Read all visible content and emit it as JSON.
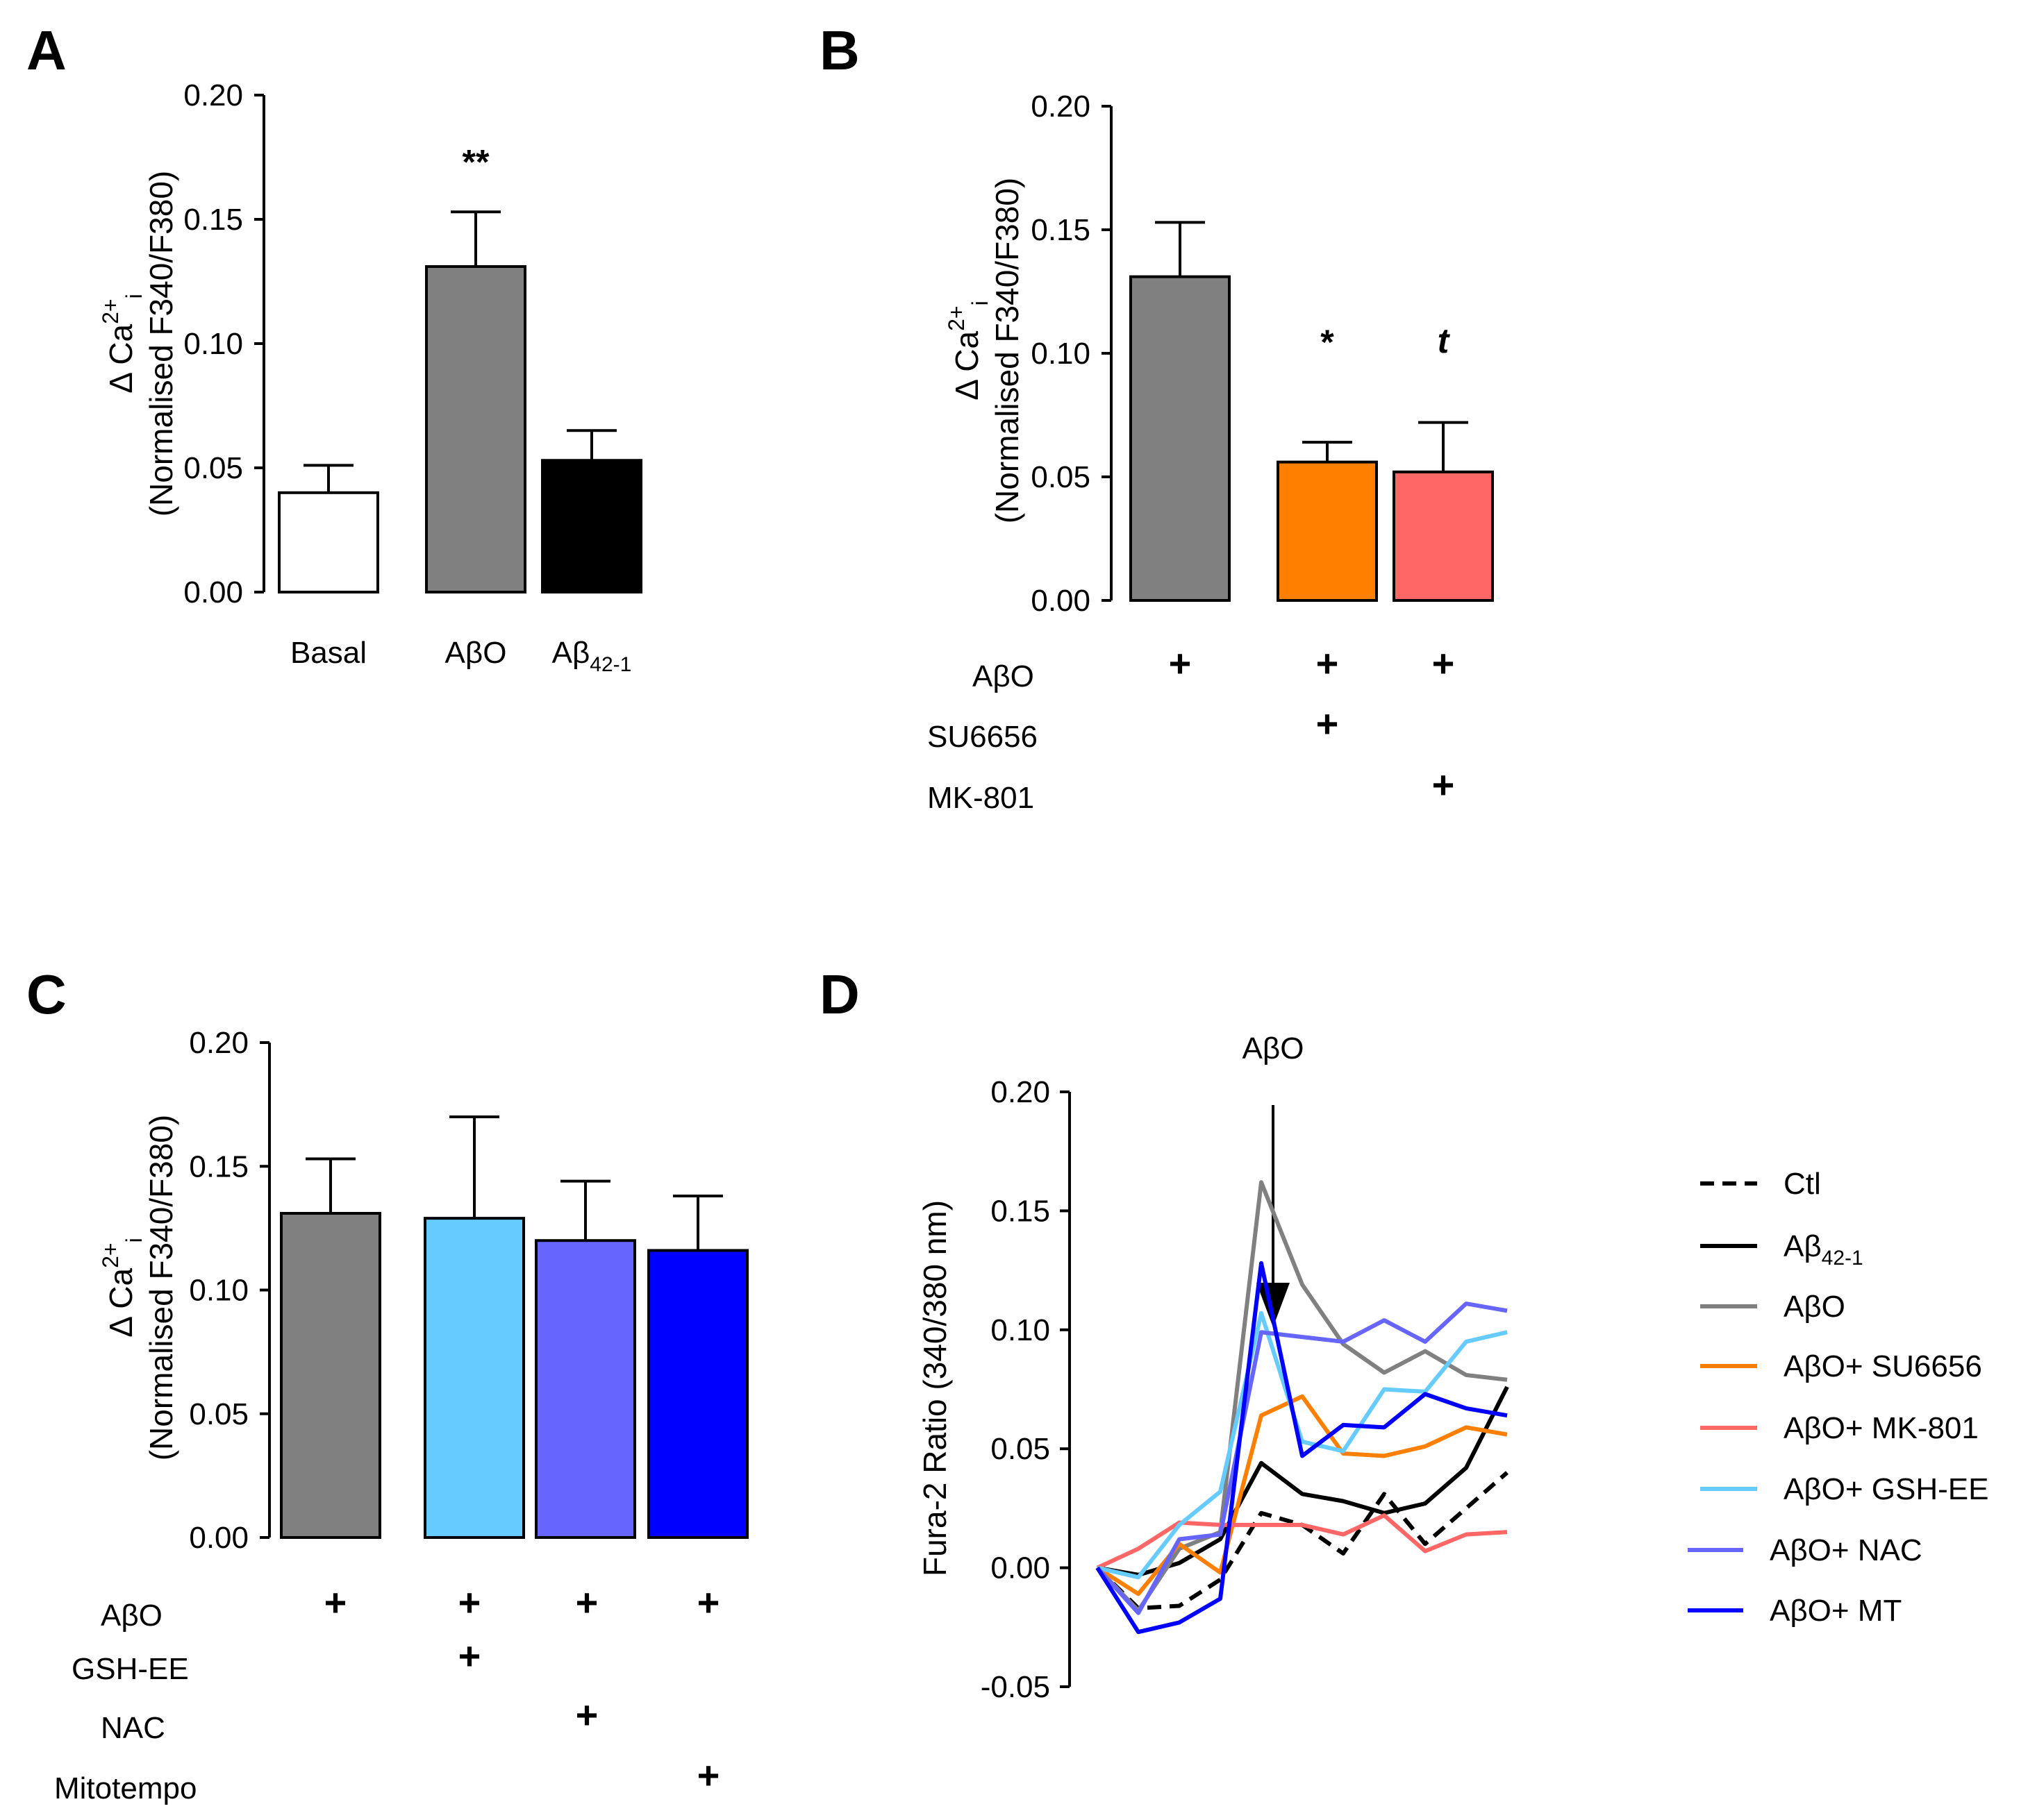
{
  "colors": {
    "basal": "#ffffff",
    "abo": "#808080",
    "ab421": "#000000",
    "su6656": "#ff8000",
    "mk801": "#ff6666",
    "gshee": "#66ccff",
    "nac": "#6666ff",
    "mt": "#0000ff",
    "ctl": "#000000"
  },
  "chart_data": [
    {
      "panel": "A",
      "type": "bar",
      "ylabel_line1": "Δ Ca",
      "ylabel_sup": "2+",
      "ylabel_sub": "i",
      "ylabel_line2": "(Normalised F340/F380)",
      "ylim": [
        0,
        0.2
      ],
      "yticks": [
        "0.00",
        "0.05",
        "0.10",
        "0.15",
        "0.20"
      ],
      "categories": [
        {
          "label": "Basal",
          "sub": ""
        },
        {
          "label": "Aβ",
          "sub": "",
          "tail": "O"
        },
        {
          "label": "Aβ",
          "sub": "42-1",
          "tail": ""
        }
      ],
      "values": [
        0.04,
        0.131,
        0.053
      ],
      "errors": [
        0.011,
        0.022,
        0.012
      ],
      "annotations": [
        "",
        "**",
        ""
      ]
    },
    {
      "panel": "B",
      "type": "bar",
      "ylabel_line1": "Δ Ca",
      "ylabel_sup": "2+",
      "ylabel_sub": "i",
      "ylabel_line2": "(Normalised F340/F380)",
      "ylim": [
        0,
        0.2
      ],
      "yticks": [
        "0.00",
        "0.05",
        "0.10",
        "0.15",
        "0.20"
      ],
      "values": [
        0.131,
        0.056,
        0.052
      ],
      "errors": [
        0.022,
        0.008,
        0.02
      ],
      "annotations": [
        "",
        "*",
        "t"
      ],
      "conditions": [
        {
          "label": "AβO",
          "marks": [
            "+",
            "+",
            "+"
          ]
        },
        {
          "label": "SU6656",
          "marks": [
            "",
            "+",
            ""
          ]
        },
        {
          "label": "MK-801",
          "marks": [
            "",
            "",
            "+"
          ]
        }
      ]
    },
    {
      "panel": "C",
      "type": "bar",
      "ylabel_line1": "Δ Ca",
      "ylabel_sup": "2+",
      "ylabel_sub": "i",
      "ylabel_line2": "(Normalised F340/F380)",
      "ylim": [
        0,
        0.2
      ],
      "yticks": [
        "0.00",
        "0.05",
        "0.10",
        "0.15",
        "0.20"
      ],
      "values": [
        0.131,
        0.129,
        0.12,
        0.116
      ],
      "errors": [
        0.022,
        0.041,
        0.024,
        0.022
      ],
      "conditions": [
        {
          "label": "AβO",
          "marks": [
            "+",
            "+",
            "+",
            "+"
          ]
        },
        {
          "label": "GSH-EE",
          "marks": [
            "",
            "+",
            "",
            ""
          ]
        },
        {
          "label": "NAC",
          "marks": [
            "",
            "",
            "+",
            ""
          ]
        },
        {
          "label": "Mitotempo",
          "marks": [
            "",
            "",
            "",
            "+"
          ]
        }
      ]
    },
    {
      "panel": "D",
      "type": "line",
      "ylabel": "Fura-2 Ratio  (340/380 nm)",
      "ylim": [
        -0.05,
        0.2
      ],
      "yticks": [
        "-0.05",
        "0.00",
        "0.05",
        "0.10",
        "0.15",
        "0.20"
      ],
      "arrow_label": "AβO",
      "arrow_at_x": 3,
      "x": [
        0,
        1,
        2,
        3,
        4,
        5,
        6,
        7,
        8,
        9,
        10
      ],
      "series": [
        {
          "name": "Ctl",
          "dashed": true,
          "values": [
            0.0,
            -0.017,
            -0.016,
            -0.005,
            0.023,
            0.018,
            0.006,
            0.031,
            0.01,
            0.025,
            0.04
          ]
        },
        {
          "name": "Aβ",
          "sub": "42-1",
          "values": [
            0.0,
            -0.003,
            0.002,
            0.012,
            0.044,
            0.031,
            0.028,
            0.023,
            0.027,
            0.042,
            0.076
          ]
        },
        {
          "name": "AβO",
          "values": [
            0.0,
            -0.018,
            0.008,
            0.015,
            0.162,
            0.119,
            0.094,
            0.082,
            0.091,
            0.081,
            0.079
          ]
        },
        {
          "name": "AβO+ SU6656",
          "values": [
            0.0,
            -0.011,
            0.01,
            -0.002,
            0.064,
            0.072,
            0.048,
            0.047,
            0.051,
            0.059,
            0.056
          ]
        },
        {
          "name": "AβO+ MK-801",
          "values": [
            0.0,
            0.008,
            0.019,
            0.018,
            0.018,
            0.018,
            0.014,
            0.022,
            0.007,
            0.014,
            0.015
          ]
        },
        {
          "name": "AβO+ GSH-EE",
          "values": [
            0.0,
            -0.004,
            0.018,
            0.032,
            0.107,
            0.053,
            0.049,
            0.075,
            0.074,
            0.095,
            0.099
          ]
        },
        {
          "name": "AβO+ NAC",
          "values": [
            0.0,
            -0.019,
            0.012,
            0.014,
            0.099,
            0.097,
            0.095,
            0.104,
            0.095,
            0.111,
            0.108
          ]
        },
        {
          "name": "AβO+ MT",
          "values": [
            0.0,
            -0.027,
            -0.023,
            -0.013,
            0.128,
            0.047,
            0.06,
            0.059,
            0.073,
            0.067,
            0.064
          ]
        }
      ]
    }
  ]
}
